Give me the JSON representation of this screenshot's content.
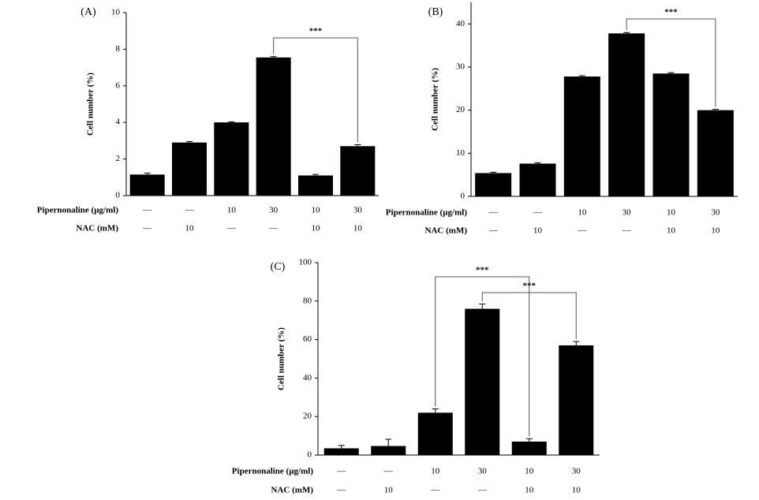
{
  "chart_data": [
    {
      "type": "bar",
      "panel_label": "(A)",
      "ylabel": "Cell number (%)",
      "color": "#000000",
      "ylim": [
        0,
        10
      ],
      "yticks": [
        0,
        2,
        4,
        6,
        8,
        10
      ],
      "values": [
        1.15,
        2.9,
        4.0,
        7.55,
        1.1,
        2.7
      ],
      "errors": [
        0.08,
        0.05,
        0.03,
        0.05,
        0.06,
        0.08
      ],
      "treatment_rows": [
        {
          "label": "Pipernonaline (µg/ml)",
          "values": [
            "—",
            "—",
            "10",
            "30",
            "10",
            "30"
          ]
        },
        {
          "label": "NAC (mM)",
          "values": [
            "—",
            "10",
            "—",
            "—",
            "10",
            "10"
          ]
        }
      ],
      "significance": [
        {
          "text": "***",
          "between": [
            3,
            5
          ]
        }
      ]
    },
    {
      "type": "bar",
      "panel_label": "(B)",
      "ylabel": "Cell number (%)",
      "color": "#000000",
      "ylim": [
        0,
        45
      ],
      "yticks": [
        0,
        10,
        20,
        30,
        40
      ],
      "values": [
        5.4,
        7.6,
        27.8,
        37.8,
        28.5,
        20.0
      ],
      "errors": [
        0.2,
        0.2,
        0.2,
        0.2,
        0.2,
        0.2
      ],
      "treatment_rows": [
        {
          "label": "Pipernonaline (µg/ml)",
          "values": [
            "—",
            "—",
            "10",
            "30",
            "10",
            "30"
          ]
        },
        {
          "label": "NAC (mM)",
          "values": [
            "—",
            "10",
            "—",
            "—",
            "10",
            "10"
          ]
        }
      ],
      "significance": [
        {
          "text": "***",
          "between": [
            3,
            5
          ]
        }
      ]
    },
    {
      "type": "bar",
      "panel_label": "(C)",
      "ylabel": "Cell number (%)",
      "color": "#000000",
      "ylim": [
        0,
        100
      ],
      "yticks": [
        0,
        20,
        40,
        60,
        80,
        100
      ],
      "values": [
        3.5,
        4.7,
        22,
        76,
        7,
        57
      ],
      "errors": [
        1.5,
        3.5,
        2,
        2.5,
        1.5,
        2
      ],
      "treatment_rows": [
        {
          "label": "Pipernonaline (µg/ml)",
          "values": [
            "—",
            "—",
            "10",
            "30",
            "10",
            "30"
          ]
        },
        {
          "label": "NAC (mM)",
          "values": [
            "—",
            "10",
            "—",
            "—",
            "10",
            "10"
          ]
        }
      ],
      "significance": [
        {
          "text": "***",
          "between": [
            2,
            4
          ]
        },
        {
          "text": "***",
          "between": [
            3,
            5
          ]
        }
      ]
    }
  ]
}
